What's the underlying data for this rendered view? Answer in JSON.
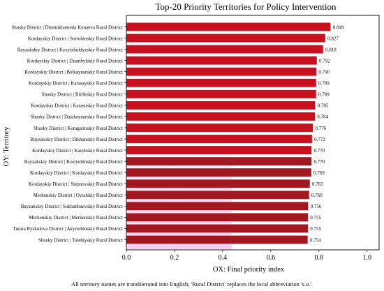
{
  "colors": {
    "bar": "#c8101e",
    "bar_dark": "#a11821",
    "highlight": "#f6c6ee",
    "frame": "#000000"
  },
  "chart_data": {
    "type": "bar",
    "orientation": "horizontal",
    "title": "Top-20 Priority Territories for Policy Intervention",
    "xlabel": "OX: Final priority index",
    "ylabel": "OY: Territory",
    "xlim": [
      0,
      1.05
    ],
    "xticks": [
      "0.0",
      "0.2",
      "0.4",
      "0.6",
      "0.8",
      "1.0"
    ],
    "grid": false,
    "categories": [
      "Shusky District | Dinmukhameda Kunaeva Rural District",
      "Kordayskiy District | Sortobinskiy Rural District",
      "Bayzakskiy District | Kyzylzhuldyzskiy Rural District",
      "Kordayskiy District | Zhambylskiy Rural District",
      "Kordayskiy District | Betkaynarskiy Rural District",
      "Kordayskiy District | Karasayskiy Rural District",
      "Shusky District | Birlikskiy Rural District",
      "Kordayskiy District | Karasuskiy Rural District",
      "Shusky District | Dalakaynarskiy Rural District",
      "Shusky District | Koragatinskiy Rural District",
      "Bayzakskiy District | Dikhanskiy Rural District",
      "Kordayskiy District | Kasykskiy Rural District",
      "Bayzakskiy District | Kostyubinskiy Rural District",
      "Kordayskiy District | Kordayskiy Rural District",
      "Kordayskiy District | Stepnovskiy Rural District",
      "Merkenskiy District | Oytalskiy Rural District",
      "Bayzakskiy District | Sukhanbaevskiy Rural District",
      "Merkenskiy District | Merkenskiy Rural District",
      "Turara Ryskulova District | Akyrtobinskiy Rural District",
      "Shusky District | Tolebiyskiy Rural District"
    ],
    "values": [
      0.849,
      0.827,
      0.818,
      0.792,
      0.79,
      0.789,
      0.789,
      0.785,
      0.784,
      0.776,
      0.772,
      0.77,
      0.77,
      0.769,
      0.763,
      0.76,
      0.756,
      0.755,
      0.755,
      0.754
    ],
    "value_labels": [
      "0.849",
      "0.827",
      "0.818",
      "0.792",
      "0.790",
      "0.789",
      "0.789",
      "0.785",
      "0.784",
      "0.776",
      "0.772",
      "0.770",
      "0.770",
      "0.769",
      "0.763",
      "0.760",
      "0.756",
      "0.755",
      "0.755",
      "0.754"
    ]
  },
  "caption": "All territory names are transliterated into English; 'Rural District' replaces the local abbreviation 's.o.'."
}
